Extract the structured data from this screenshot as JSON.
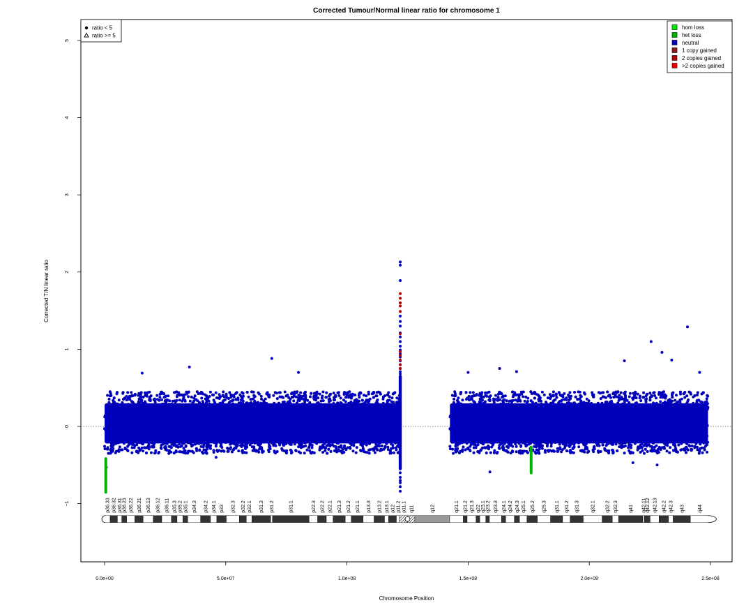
{
  "chart_data": {
    "type": "scatter",
    "title": "Corrected Tumour/Normal linear ratio for chromosome  1",
    "xlabel": "Chromosome Position",
    "ylabel": "Corrected T/N linear ratio",
    "xlim": [
      -10000000,
      260000000
    ],
    "ylim": [
      -1.75,
      5.25
    ],
    "x_ticks": [
      0,
      50000000,
      100000000,
      150000000,
      200000000,
      250000000
    ],
    "x_tick_labels": [
      "0.0e+00",
      "5.0e+07",
      "1.0e+08",
      "1.5e+08",
      "2.0e+08",
      "2.5e+08"
    ],
    "y_ticks": [
      -1,
      0,
      1,
      2,
      3,
      4,
      5
    ],
    "y_tick_labels": [
      "−1",
      "0",
      "1",
      "2",
      "3",
      "4",
      "5"
    ],
    "reference_line": {
      "y": 0,
      "style": "dotted"
    },
    "grid": false,
    "shape_legend": {
      "placement": "top-left",
      "entries": [
        {
          "label": "ratio < 5",
          "shape": "filled-circle"
        },
        {
          "label": "ratio >= 5",
          "shape": "open-triangle"
        }
      ]
    },
    "color_legend": {
      "placement": "top-right",
      "entries": [
        {
          "label": "hom loss",
          "color": "#00ee00"
        },
        {
          "label": "het loss",
          "color": "#00b200"
        },
        {
          "label": "neutral",
          "color": "#0000bb"
        },
        {
          "label": "1 copy gained",
          "color": "#8b1a1a"
        },
        {
          "label": "2 copies gained",
          "color": "#b00000"
        },
        {
          "label": ">2 copies gained",
          "color": "#ee0000"
        }
      ]
    },
    "series": [
      {
        "name": "neutral",
        "color": "#0000bb",
        "segments": [
          {
            "x_start": 0,
            "x_end": 122000000,
            "y_low": -0.35,
            "y_high": 0.45
          },
          {
            "x_start": 142500000,
            "x_end": 249000000,
            "y_low": -0.35,
            "y_high": 0.45
          }
        ],
        "outliers": [
          {
            "x": 700000,
            "y": -0.53
          },
          {
            "x": 69000000,
            "y": 0.88
          },
          {
            "x": 35000000,
            "y": 0.77
          },
          {
            "x": 15500000,
            "y": 0.69
          },
          {
            "x": 80000000,
            "y": 0.7
          },
          {
            "x": 150000000,
            "y": 0.7
          },
          {
            "x": 163000000,
            "y": 0.75
          },
          {
            "x": 170000000,
            "y": 0.71
          },
          {
            "x": 159000000,
            "y": -0.59
          },
          {
            "x": 214500000,
            "y": 0.85
          },
          {
            "x": 225500000,
            "y": 1.1
          },
          {
            "x": 230000000,
            "y": 0.96
          },
          {
            "x": 234000000,
            "y": 0.86
          },
          {
            "x": 240500000,
            "y": 1.29
          },
          {
            "x": 245500000,
            "y": 0.7
          },
          {
            "x": 228000000,
            "y": -0.5
          },
          {
            "x": 218000000,
            "y": -0.47
          },
          {
            "x": 46000000,
            "y": -0.4
          }
        ],
        "vertical_spikes": [
          {
            "x": 122000000,
            "values": [
              2.13,
              2.09,
              1.89,
              1.6,
              1.43,
              1.36,
              1.3,
              1.21,
              1.16,
              1.1,
              1.04,
              0.99,
              0.94,
              0.9,
              0.85,
              0.8,
              0.75,
              0.71,
              0.68,
              0.65,
              -0.55,
              -0.6,
              -0.66,
              -0.7,
              -0.73,
              -0.78,
              -0.84
            ]
          }
        ]
      },
      {
        "name": "2 copies gained",
        "color": "#b00000",
        "points": [
          {
            "x": 122000000,
            "y": 1.72
          },
          {
            "x": 122000000,
            "y": 1.66
          },
          {
            "x": 122000000,
            "y": 1.6
          },
          {
            "x": 122000000,
            "y": 1.56
          },
          {
            "x": 122000000,
            "y": 1.49
          },
          {
            "x": 122000000,
            "y": 1.2
          },
          {
            "x": 122000000,
            "y": 0.97
          },
          {
            "x": 122000000,
            "y": 0.92
          },
          {
            "x": 122000000,
            "y": 0.86
          },
          {
            "x": 122000000,
            "y": 0.8
          },
          {
            "x": 122000000,
            "y": 0.75
          }
        ]
      },
      {
        "name": "het loss",
        "color": "#00b200",
        "vertical_runs": [
          {
            "x": 500000,
            "y_top": -0.4,
            "y_bottom": -0.87
          },
          {
            "x": 176000000,
            "y_top": -0.25,
            "y_bottom": -0.62
          }
        ]
      }
    ],
    "ideogram": {
      "y_center": -1.2,
      "centromere": 125000000,
      "bands": [
        {
          "name": "p36.33",
          "start": 0,
          "end": 2300000,
          "stain": "gneg"
        },
        {
          "name": "p36.32",
          "start": 2300000,
          "end": 5300000,
          "stain": "gpos25"
        },
        {
          "name": "p36.31",
          "start": 5300000,
          "end": 7100000,
          "stain": "gneg"
        },
        {
          "name": "p36.23",
          "start": 7100000,
          "end": 9100000,
          "stain": "gpos25"
        },
        {
          "name": "p36.22",
          "start": 9100000,
          "end": 12500000,
          "stain": "gneg"
        },
        {
          "name": "p36.21",
          "start": 12500000,
          "end": 15900000,
          "stain": "gpos50"
        },
        {
          "name": "p36.13",
          "start": 15900000,
          "end": 20100000,
          "stain": "gneg"
        },
        {
          "name": "p36.12",
          "start": 20100000,
          "end": 23600000,
          "stain": "gpos25"
        },
        {
          "name": "p36.11",
          "start": 23600000,
          "end": 27600000,
          "stain": "gneg"
        },
        {
          "name": "p35.3",
          "start": 27600000,
          "end": 29900000,
          "stain": "gpos25"
        },
        {
          "name": "p35.2",
          "start": 29900000,
          "end": 32300000,
          "stain": "gneg"
        },
        {
          "name": "p35.1",
          "start": 32300000,
          "end": 34300000,
          "stain": "gpos25"
        },
        {
          "name": "p34.3",
          "start": 34300000,
          "end": 39600000,
          "stain": "gneg"
        },
        {
          "name": "p34.2",
          "start": 39600000,
          "end": 43700000,
          "stain": "gpos25"
        },
        {
          "name": "p34.1",
          "start": 43700000,
          "end": 46300000,
          "stain": "gneg"
        },
        {
          "name": "p33",
          "start": 46300000,
          "end": 50200000,
          "stain": "gpos75"
        },
        {
          "name": "p32.3",
          "start": 50200000,
          "end": 55600000,
          "stain": "gneg"
        },
        {
          "name": "p32.2",
          "start": 55600000,
          "end": 58500000,
          "stain": "gpos50"
        },
        {
          "name": "p32.1",
          "start": 58500000,
          "end": 60800000,
          "stain": "gneg"
        },
        {
          "name": "p31.3",
          "start": 60800000,
          "end": 68500000,
          "stain": "gpos50"
        },
        {
          "name": "p31.2",
          "start": 68500000,
          "end": 69300000,
          "stain": "gneg"
        },
        {
          "name": "p31.1",
          "start": 69300000,
          "end": 84400000,
          "stain": "gpos100"
        },
        {
          "name": "p22.3",
          "start": 84400000,
          "end": 87900000,
          "stain": "gneg"
        },
        {
          "name": "p22.2",
          "start": 87900000,
          "end": 91500000,
          "stain": "gpos75"
        },
        {
          "name": "p22.1",
          "start": 91500000,
          "end": 94300000,
          "stain": "gneg"
        },
        {
          "name": "p21.3",
          "start": 94300000,
          "end": 99300000,
          "stain": "gpos75"
        },
        {
          "name": "p21.2",
          "start": 99300000,
          "end": 101800000,
          "stain": "gneg"
        },
        {
          "name": "p21.1",
          "start": 101800000,
          "end": 106700000,
          "stain": "gpos100"
        },
        {
          "name": "p13.3",
          "start": 106700000,
          "end": 111200000,
          "stain": "gneg"
        },
        {
          "name": "p13.2",
          "start": 111200000,
          "end": 115500000,
          "stain": "gpos50"
        },
        {
          "name": "p13.1",
          "start": 115500000,
          "end": 117200000,
          "stain": "gneg"
        },
        {
          "name": "p12",
          "start": 117200000,
          "end": 120400000,
          "stain": "gpos50"
        },
        {
          "name": "p11.2",
          "start": 120400000,
          "end": 121700000,
          "stain": "gneg"
        },
        {
          "name": "p11.1",
          "start": 121700000,
          "end": 125100000,
          "stain": "acen"
        },
        {
          "name": "q11",
          "start": 125100000,
          "end": 128000000,
          "stain": "gvar"
        },
        {
          "name": "q12",
          "start": 128000000,
          "end": 142400000,
          "stain": "gvar2"
        },
        {
          "name": "q21.1",
          "start": 142400000,
          "end": 148000000,
          "stain": "gneg"
        },
        {
          "name": "q21.2",
          "start": 148000000,
          "end": 149600000,
          "stain": "gpos50"
        },
        {
          "name": "q21.3",
          "start": 149600000,
          "end": 153300000,
          "stain": "gneg"
        },
        {
          "name": "q22",
          "start": 153300000,
          "end": 154800000,
          "stain": "gpos50"
        },
        {
          "name": "q23.1",
          "start": 154800000,
          "end": 157300000,
          "stain": "gneg"
        },
        {
          "name": "q23.2",
          "start": 157300000,
          "end": 158800000,
          "stain": "gpos50"
        },
        {
          "name": "q23.3",
          "start": 158800000,
          "end": 163800000,
          "stain": "gneg"
        },
        {
          "name": "q24.1",
          "start": 163800000,
          "end": 165500000,
          "stain": "gpos50"
        },
        {
          "name": "q24.2",
          "start": 165500000,
          "end": 169100000,
          "stain": "gneg"
        },
        {
          "name": "q24.3",
          "start": 169100000,
          "end": 171200000,
          "stain": "gpos75"
        },
        {
          "name": "q25.1",
          "start": 171200000,
          "end": 174300000,
          "stain": "gneg"
        },
        {
          "name": "q25.2",
          "start": 174300000,
          "end": 178600000,
          "stain": "gpos50"
        },
        {
          "name": "q25.3",
          "start": 178600000,
          "end": 184000000,
          "stain": "gneg"
        },
        {
          "name": "q31.1",
          "start": 184000000,
          "end": 189000000,
          "stain": "gpos100"
        },
        {
          "name": "q31.2",
          "start": 189000000,
          "end": 192100000,
          "stain": "gneg"
        },
        {
          "name": "q31.3",
          "start": 192100000,
          "end": 197500000,
          "stain": "gpos100"
        },
        {
          "name": "q32.1",
          "start": 197500000,
          "end": 205300000,
          "stain": "gneg"
        },
        {
          "name": "q32.2",
          "start": 205300000,
          "end": 209500000,
          "stain": "gpos25"
        },
        {
          "name": "q32.3",
          "start": 209500000,
          "end": 212100000,
          "stain": "gneg"
        },
        {
          "name": "q41",
          "start": 212100000,
          "end": 222100000,
          "stain": "gpos100"
        },
        {
          "name": "q42.11",
          "start": 222100000,
          "end": 222700000,
          "stain": "gneg"
        },
        {
          "name": "q42.12",
          "start": 222700000,
          "end": 225100000,
          "stain": "gpos25"
        },
        {
          "name": "q42.13",
          "start": 225100000,
          "end": 228800000,
          "stain": "gneg"
        },
        {
          "name": "q42.2",
          "start": 228800000,
          "end": 232700000,
          "stain": "gpos50"
        },
        {
          "name": "q42.3",
          "start": 232700000,
          "end": 234600000,
          "stain": "gneg"
        },
        {
          "name": "q43",
          "start": 234600000,
          "end": 241700000,
          "stain": "gpos75"
        },
        {
          "name": "q44",
          "start": 241700000,
          "end": 249250000,
          "stain": "gneg"
        }
      ]
    }
  }
}
